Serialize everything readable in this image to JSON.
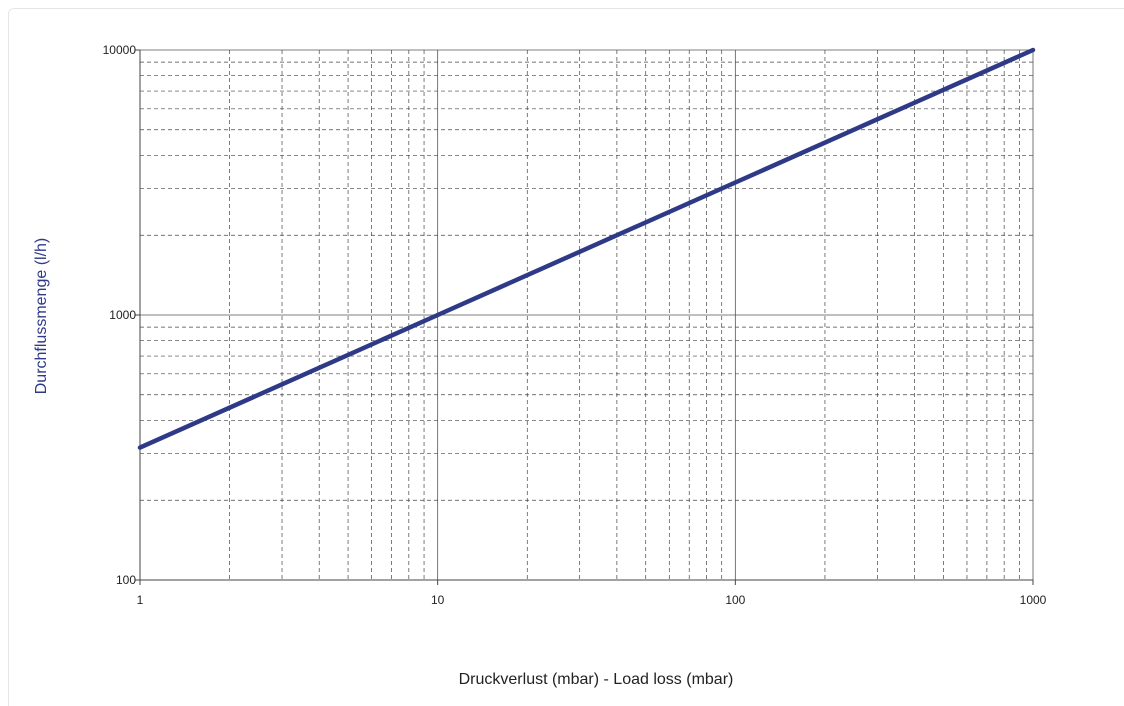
{
  "chart_data": {
    "type": "line",
    "xlabel": "Druckverlust (mbar) - Load loss (mbar)",
    "ylabel": "Durchflussmenge (l/h)",
    "xscale": "log",
    "yscale": "log",
    "xlim": [
      1,
      1000
    ],
    "ylim": [
      100,
      10000
    ],
    "x_ticks": [
      "1",
      "10",
      "100",
      "1000"
    ],
    "y_ticks": [
      "100",
      "1000",
      "10000"
    ],
    "grid": "major solid, minor dashed",
    "series": [
      {
        "color": "#2e3a87",
        "x": [
          1,
          10,
          100,
          1000
        ],
        "y": [
          316,
          1000,
          3162,
          10000
        ]
      }
    ]
  }
}
